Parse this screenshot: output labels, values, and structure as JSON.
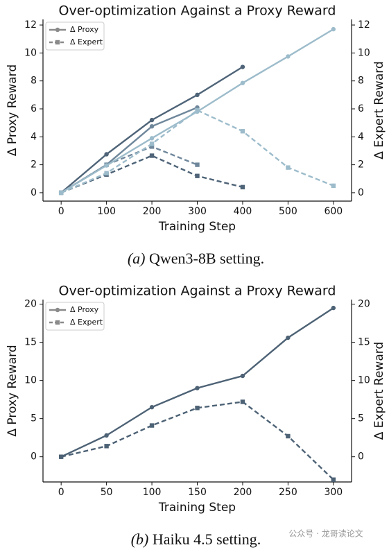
{
  "chart_data": [
    {
      "type": "line",
      "title": "Over-optimization Against a Proxy Reward",
      "x_label": "Training Step",
      "y_label": "Δ Proxy Reward",
      "y2_label": "Δ Expert Reward",
      "x": [
        0,
        100,
        200,
        300,
        400,
        500,
        600
      ],
      "xlim": [
        -40,
        640
      ],
      "xticks": [
        0,
        100,
        200,
        300,
        400,
        500,
        600
      ],
      "ylim": [
        -0.6,
        12.4
      ],
      "yticks": [
        0,
        2,
        4,
        6,
        8,
        10,
        12
      ],
      "y2lim": [
        -0.6,
        12.4
      ],
      "y2ticks": [
        0,
        2,
        4,
        6,
        8,
        10,
        12
      ],
      "legend": [
        {
          "label": "Δ Proxy",
          "marker": "circle",
          "dash": false,
          "color": "#8a8a8a"
        },
        {
          "label": "Δ Expert",
          "marker": "square",
          "dash": true,
          "color": "#8a8a8a"
        }
      ],
      "series": [
        {
          "color": "#4f6478",
          "axis": "y",
          "dash": false,
          "marker": "circle",
          "values": [
            0,
            2.75,
            5.2,
            7.0,
            9.0,
            null,
            null
          ]
        },
        {
          "color": "#4f6478",
          "axis": "y2",
          "dash": true,
          "marker": "square",
          "values": [
            0,
            1.3,
            2.65,
            1.2,
            0.4,
            null,
            null
          ]
        },
        {
          "color": "#6f879b",
          "axis": "y",
          "dash": false,
          "marker": "circle",
          "values": [
            0,
            2.0,
            4.75,
            6.1,
            null,
            null,
            null
          ]
        },
        {
          "color": "#6f879b",
          "axis": "y2",
          "dash": true,
          "marker": "square",
          "values": [
            0,
            2.0,
            3.3,
            2.0,
            null,
            null,
            null
          ]
        },
        {
          "color": "#9dbccb",
          "axis": "y",
          "dash": false,
          "marker": "circle",
          "values": [
            0,
            1.95,
            3.9,
            5.8,
            7.85,
            9.75,
            11.7
          ]
        },
        {
          "color": "#9dbccb",
          "axis": "y2",
          "dash": true,
          "marker": "square",
          "values": [
            0,
            1.4,
            3.5,
            5.9,
            4.4,
            1.8,
            0.5
          ]
        }
      ],
      "caption": {
        "label": "(a)",
        "text": "Qwen3-8B setting."
      }
    },
    {
      "type": "line",
      "title": "Over-optimization Against a Proxy Reward",
      "x_label": "Training Step",
      "y_label": "Δ Proxy Reward",
      "y2_label": "Δ Expert Reward",
      "x": [
        0,
        50,
        100,
        150,
        200,
        250,
        300
      ],
      "xlim": [
        -20,
        320
      ],
      "xticks": [
        0,
        50,
        100,
        150,
        200,
        250,
        300
      ],
      "ylim": [
        -3.3,
        20.6
      ],
      "yticks": [
        0,
        5,
        10,
        15,
        20
      ],
      "y2lim": [
        -3.3,
        20.6
      ],
      "y2ticks": [
        0,
        5,
        10,
        15,
        20
      ],
      "legend": [
        {
          "label": "Δ Proxy",
          "marker": "circle",
          "dash": false,
          "color": "#8a8a8a"
        },
        {
          "label": "Δ Expert",
          "marker": "square",
          "dash": true,
          "color": "#8a8a8a"
        }
      ],
      "series": [
        {
          "color": "#4d6275",
          "axis": "y",
          "dash": false,
          "marker": "circle",
          "values": [
            0,
            2.8,
            6.5,
            9.0,
            10.6,
            15.6,
            19.5
          ]
        },
        {
          "color": "#4d6275",
          "axis": "y2",
          "dash": true,
          "marker": "square",
          "values": [
            0,
            1.4,
            4.1,
            6.4,
            7.2,
            2.7,
            -3.0
          ]
        }
      ],
      "caption": {
        "label": "(b)",
        "text": "Haiku 4.5 setting."
      }
    }
  ],
  "watermark": "公众号 · 龙哥读论文"
}
